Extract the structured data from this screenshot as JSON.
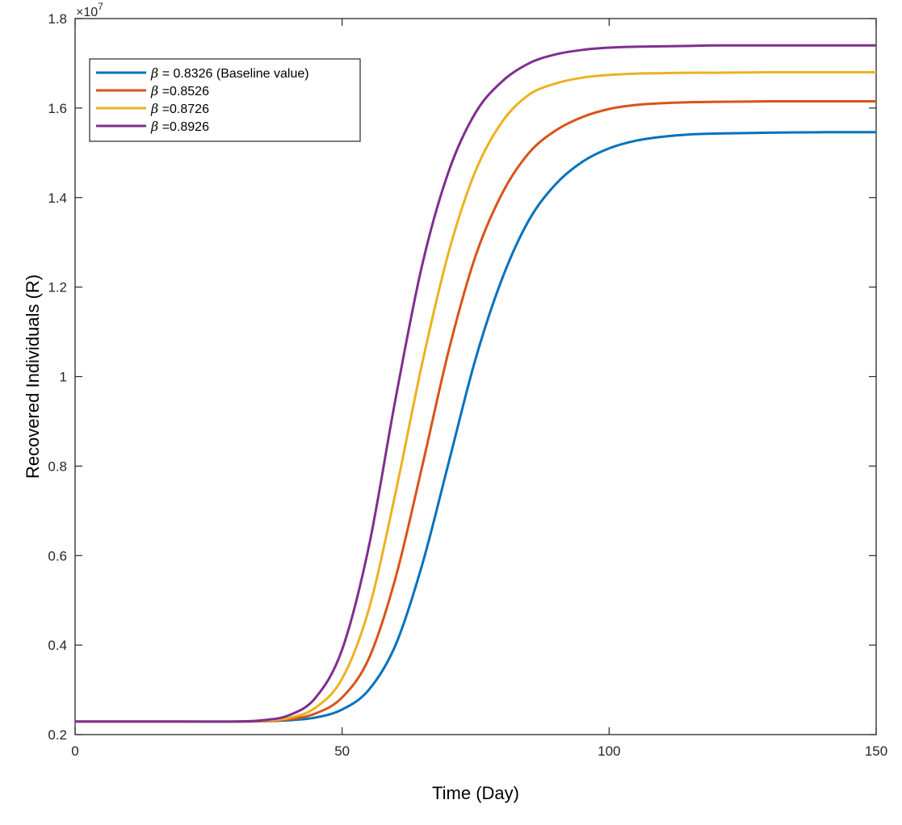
{
  "chart_data": {
    "type": "line",
    "xlabel": "Time (Day)",
    "ylabel": "Recovered Individuals (R)",
    "y_exponent_label": "×10",
    "y_exponent_power": "7",
    "xlim": [
      0,
      150
    ],
    "ylim": [
      0.2,
      1.8
    ],
    "x_ticks": [
      0,
      50,
      100,
      150
    ],
    "x_tick_labels": [
      "0",
      "50",
      "100",
      "150"
    ],
    "y_ticks": [
      0.2,
      0.4,
      0.6,
      0.8,
      1.0,
      1.2,
      1.4,
      1.6,
      1.8
    ],
    "y_tick_labels": [
      "0.2",
      "0.4",
      "0.6",
      "0.8",
      "1",
      "1.2",
      "1.4",
      "1.6",
      "1.8"
    ],
    "grid": false,
    "legend_position": "top-left",
    "x": [
      0,
      20,
      30,
      35,
      40,
      45,
      50,
      55,
      60,
      65,
      70,
      75,
      80,
      85,
      90,
      95,
      100,
      105,
      110,
      115,
      120,
      130,
      140,
      150
    ],
    "series": [
      {
        "name": "β = 0.8326 (Baseline value)",
        "symbol": "β",
        "label_rest": " = 0.8326 (Baseline value)",
        "color": "#0072BD",
        "values": [
          0.229,
          0.229,
          0.229,
          0.23,
          0.232,
          0.238,
          0.256,
          0.3,
          0.4,
          0.58,
          0.81,
          1.04,
          1.22,
          1.35,
          1.43,
          1.48,
          1.51,
          1.527,
          1.536,
          1.541,
          1.543,
          1.545,
          1.546,
          1.546
        ]
      },
      {
        "name": "β =0.8526",
        "symbol": "β",
        "label_rest": " =0.8526",
        "color": "#D95319",
        "values": [
          0.229,
          0.229,
          0.229,
          0.23,
          0.234,
          0.247,
          0.283,
          0.37,
          0.55,
          0.8,
          1.06,
          1.27,
          1.41,
          1.5,
          1.55,
          1.58,
          1.598,
          1.607,
          1.611,
          1.613,
          1.614,
          1.615,
          1.615,
          1.615
        ]
      },
      {
        "name": "β =0.8726",
        "symbol": "β",
        "label_rest": " =0.8726",
        "color": "#EDB120",
        "values": [
          0.229,
          0.229,
          0.229,
          0.231,
          0.237,
          0.26,
          0.325,
          0.48,
          0.74,
          1.03,
          1.28,
          1.46,
          1.57,
          1.63,
          1.655,
          1.668,
          1.674,
          1.677,
          1.678,
          1.679,
          1.679,
          1.68,
          1.68,
          1.68
        ]
      },
      {
        "name": "β =0.8926",
        "symbol": "β",
        "label_rest": " =0.8926",
        "color": "#7E2F8E",
        "values": [
          0.229,
          0.229,
          0.229,
          0.232,
          0.243,
          0.282,
          0.39,
          0.62,
          0.95,
          1.25,
          1.46,
          1.59,
          1.66,
          1.7,
          1.72,
          1.73,
          1.735,
          1.737,
          1.738,
          1.739,
          1.74,
          1.74,
          1.74,
          1.74
        ]
      }
    ]
  }
}
